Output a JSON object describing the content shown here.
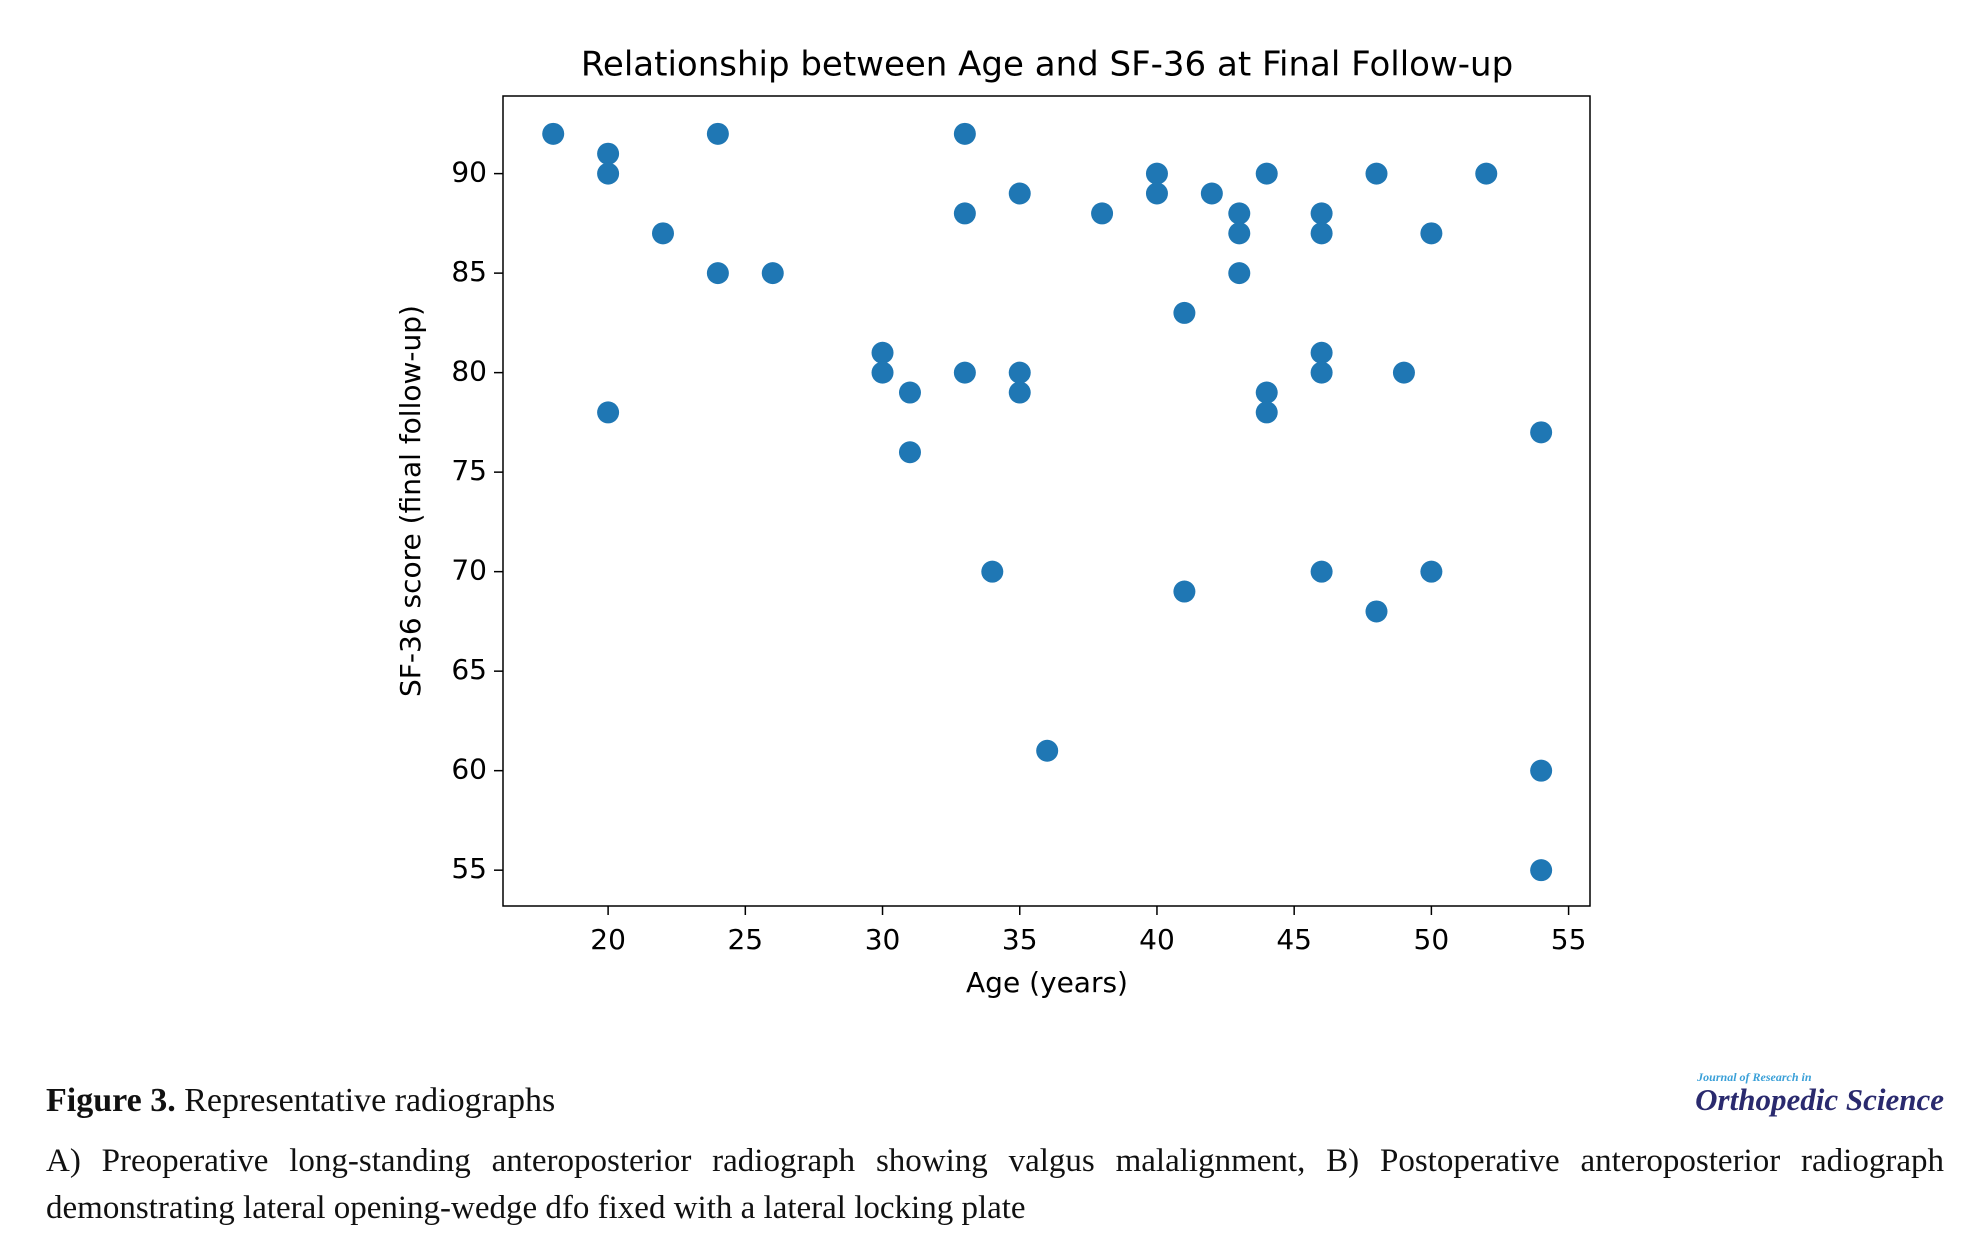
{
  "chart_data": {
    "type": "scatter",
    "title": "Relationship between Age and SF-36 at Final Follow-up",
    "x_label": "Age (years)",
    "y_label": "SF-36 score (final follow-up)",
    "x": [
      18,
      20,
      20,
      20,
      22,
      24,
      24,
      26,
      30,
      30,
      31,
      31,
      33,
      33,
      33,
      34,
      35,
      35,
      35,
      36,
      38,
      40,
      40,
      41,
      41,
      42,
      43,
      43,
      43,
      44,
      44,
      44,
      46,
      46,
      46,
      46,
      46,
      48,
      48,
      49,
      50,
      50,
      52,
      54,
      54,
      54
    ],
    "values": [
      92,
      91,
      90,
      78,
      87,
      92,
      85,
      85,
      81,
      80,
      79,
      76,
      92,
      88,
      80,
      70,
      89,
      80,
      79,
      61,
      88,
      90,
      89,
      83,
      69,
      89,
      88,
      87,
      85,
      90,
      79,
      78,
      88,
      87,
      81,
      80,
      70,
      90,
      68,
      80,
      87,
      70,
      90,
      77,
      60,
      55
    ],
    "color": "#1f77b4",
    "xlim": [
      16.17,
      55.78
    ],
    "xticks": [
      20,
      25,
      30,
      35,
      40,
      45,
      50,
      55
    ],
    "ylim": [
      53.2,
      93.9
    ],
    "yticks": [
      55,
      60,
      65,
      70,
      75,
      80,
      85,
      90
    ],
    "grid": false
  },
  "figure": {
    "caption_label": "Figure 3.",
    "caption_title": "Representative radiographs",
    "description": "A) Preoperative long-standing anteroposterior radiograph showing valgus malalignment, B) Postoperative anteroposterior radiograph demonstrating lateral opening-wedge dfo fixed with a lateral locking plate",
    "journal_small": "Journal of Research in",
    "journal_name": "Orthopedic Science"
  }
}
